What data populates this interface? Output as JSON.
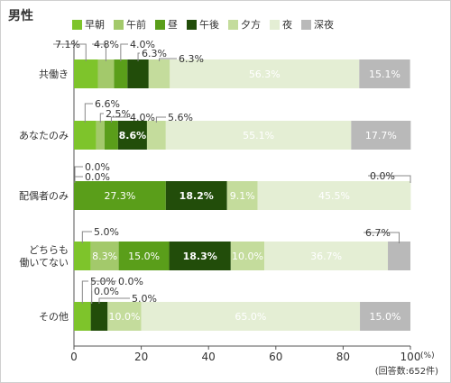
{
  "title": "男性",
  "note": "(回答数:652件)",
  "chart_data": {
    "type": "bar",
    "orientation": "horizontal",
    "stacked": true,
    "title": "男性",
    "xlim": [
      0,
      100
    ],
    "xticks": [
      "0",
      "20",
      "40",
      "60",
      "80",
      "100"
    ],
    "xunit": "(%)",
    "legend_position": "top",
    "grid": false,
    "categories": [
      "共働き",
      "あなたのみ",
      "配偶者のみ",
      "どちらも\n働いてない",
      "その他"
    ],
    "series": [
      {
        "name": "早朝",
        "color": "#7ec42b",
        "values": [
          7.1,
          6.6,
          0.0,
          5.0,
          5.0
        ]
      },
      {
        "name": "午前",
        "color": "#a3c96b",
        "values": [
          4.8,
          2.5,
          0.0,
          8.3,
          0.0
        ]
      },
      {
        "name": "昼",
        "color": "#5a9e1a",
        "values": [
          4.0,
          4.0,
          27.3,
          15.0,
          0.0
        ]
      },
      {
        "name": "午後",
        "color": "#224d0a",
        "values": [
          6.3,
          8.6,
          18.2,
          18.3,
          5.0
        ]
      },
      {
        "name": "夕方",
        "color": "#c4dc9c",
        "values": [
          6.3,
          5.6,
          9.1,
          10.0,
          10.0
        ]
      },
      {
        "name": "夜",
        "color": "#e4eed4",
        "values": [
          56.3,
          55.1,
          45.5,
          36.7,
          65.0
        ]
      },
      {
        "name": "深夜",
        "color": "#b9b9b9",
        "values": [
          15.1,
          17.7,
          0.0,
          6.7,
          15.0
        ]
      }
    ],
    "labels": [
      [
        "7.1%",
        "4.8%",
        "4.0%",
        "6.3%",
        "6.3%",
        "56.3%",
        "15.1%"
      ],
      [
        "6.6%",
        "2.5%",
        "4.0%",
        "8.6%",
        "5.6%",
        "55.1%",
        "17.7%"
      ],
      [
        "0.0%",
        "0.0%",
        "27.3%",
        "18.2%",
        "9.1%",
        "45.5%",
        "0.0%"
      ],
      [
        "5.0%",
        "8.3%",
        "15.0%",
        "18.3%",
        "10.0%",
        "36.7%",
        "6.7%"
      ],
      [
        "5.0%",
        "0.0%",
        "0.0%",
        "5.0%",
        "10.0%",
        "65.0%",
        "15.0%"
      ]
    ]
  }
}
